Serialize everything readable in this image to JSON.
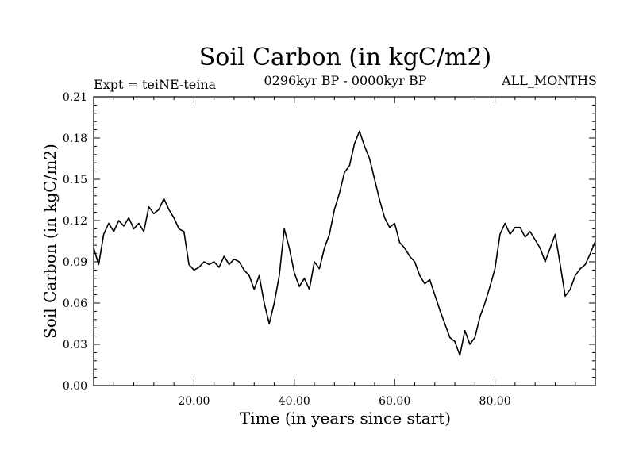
{
  "chart_data": {
    "type": "line",
    "title": "Soil Carbon (in kgC/m2)",
    "subtitle_left": "Expt = teiNE-teina",
    "subtitle_center": "0296kyr BP - 0000kyr BP",
    "subtitle_right": "ALL_MONTHS",
    "xlabel": "Time (in years since start)",
    "ylabel": "Soil Carbon (in kgC/m2)",
    "xlim": [
      0,
      100
    ],
    "ylim": [
      0,
      0.21
    ],
    "xticks": [
      20,
      40,
      60,
      80
    ],
    "xtick_labels": [
      "20.00",
      "40.00",
      "60.00",
      "80.00"
    ],
    "yticks": [
      0,
      0.03,
      0.06,
      0.09,
      0.12,
      0.15,
      0.18,
      0.21
    ],
    "ytick_labels": [
      "0.00",
      "0.03",
      "0.06",
      "0.09",
      "0.12",
      "0.15",
      "0.18",
      "0.21"
    ],
    "grid": false,
    "line_color": "#000000",
    "series": [
      {
        "name": "Soil Carbon",
        "x": [
          0,
          1,
          2,
          3,
          4,
          5,
          6,
          7,
          8,
          9,
          10,
          11,
          12,
          13,
          14,
          15,
          16,
          17,
          18,
          19,
          20,
          21,
          22,
          23,
          24,
          25,
          26,
          27,
          28,
          29,
          30,
          31,
          32,
          33,
          34,
          35,
          36,
          37,
          38,
          39,
          40,
          41,
          42,
          43,
          44,
          45,
          46,
          47,
          48,
          49,
          50,
          51,
          52,
          53,
          54,
          55,
          56,
          57,
          58,
          59,
          60,
          61,
          62,
          63,
          64,
          65,
          66,
          67,
          68,
          69,
          70,
          71,
          72,
          73,
          74,
          75,
          76,
          77,
          78,
          79,
          80,
          81,
          82,
          83,
          84,
          85,
          86,
          87,
          88,
          89,
          90,
          91,
          92,
          93,
          94,
          95,
          96,
          97,
          98,
          99,
          100
        ],
        "values": [
          0.1,
          0.088,
          0.11,
          0.118,
          0.112,
          0.12,
          0.116,
          0.122,
          0.114,
          0.118,
          0.112,
          0.13,
          0.125,
          0.128,
          0.136,
          0.128,
          0.122,
          0.114,
          0.112,
          0.088,
          0.084,
          0.086,
          0.09,
          0.088,
          0.09,
          0.086,
          0.094,
          0.088,
          0.092,
          0.09,
          0.084,
          0.08,
          0.07,
          0.08,
          0.06,
          0.045,
          0.06,
          0.08,
          0.114,
          0.1,
          0.082,
          0.072,
          0.078,
          0.07,
          0.09,
          0.085,
          0.1,
          0.11,
          0.128,
          0.14,
          0.155,
          0.16,
          0.176,
          0.185,
          0.174,
          0.165,
          0.15,
          0.135,
          0.122,
          0.115,
          0.118,
          0.104,
          0.1,
          0.094,
          0.09,
          0.08,
          0.074,
          0.077,
          0.066,
          0.055,
          0.045,
          0.035,
          0.032,
          0.022,
          0.04,
          0.03,
          0.035,
          0.05,
          0.06,
          0.072,
          0.085,
          0.11,
          0.118,
          0.11,
          0.115,
          0.115,
          0.108,
          0.112,
          0.106,
          0.1,
          0.09,
          0.1,
          0.11,
          0.088,
          0.065,
          0.07,
          0.08,
          0.085,
          0.088,
          0.096,
          0.105
        ]
      }
    ]
  }
}
